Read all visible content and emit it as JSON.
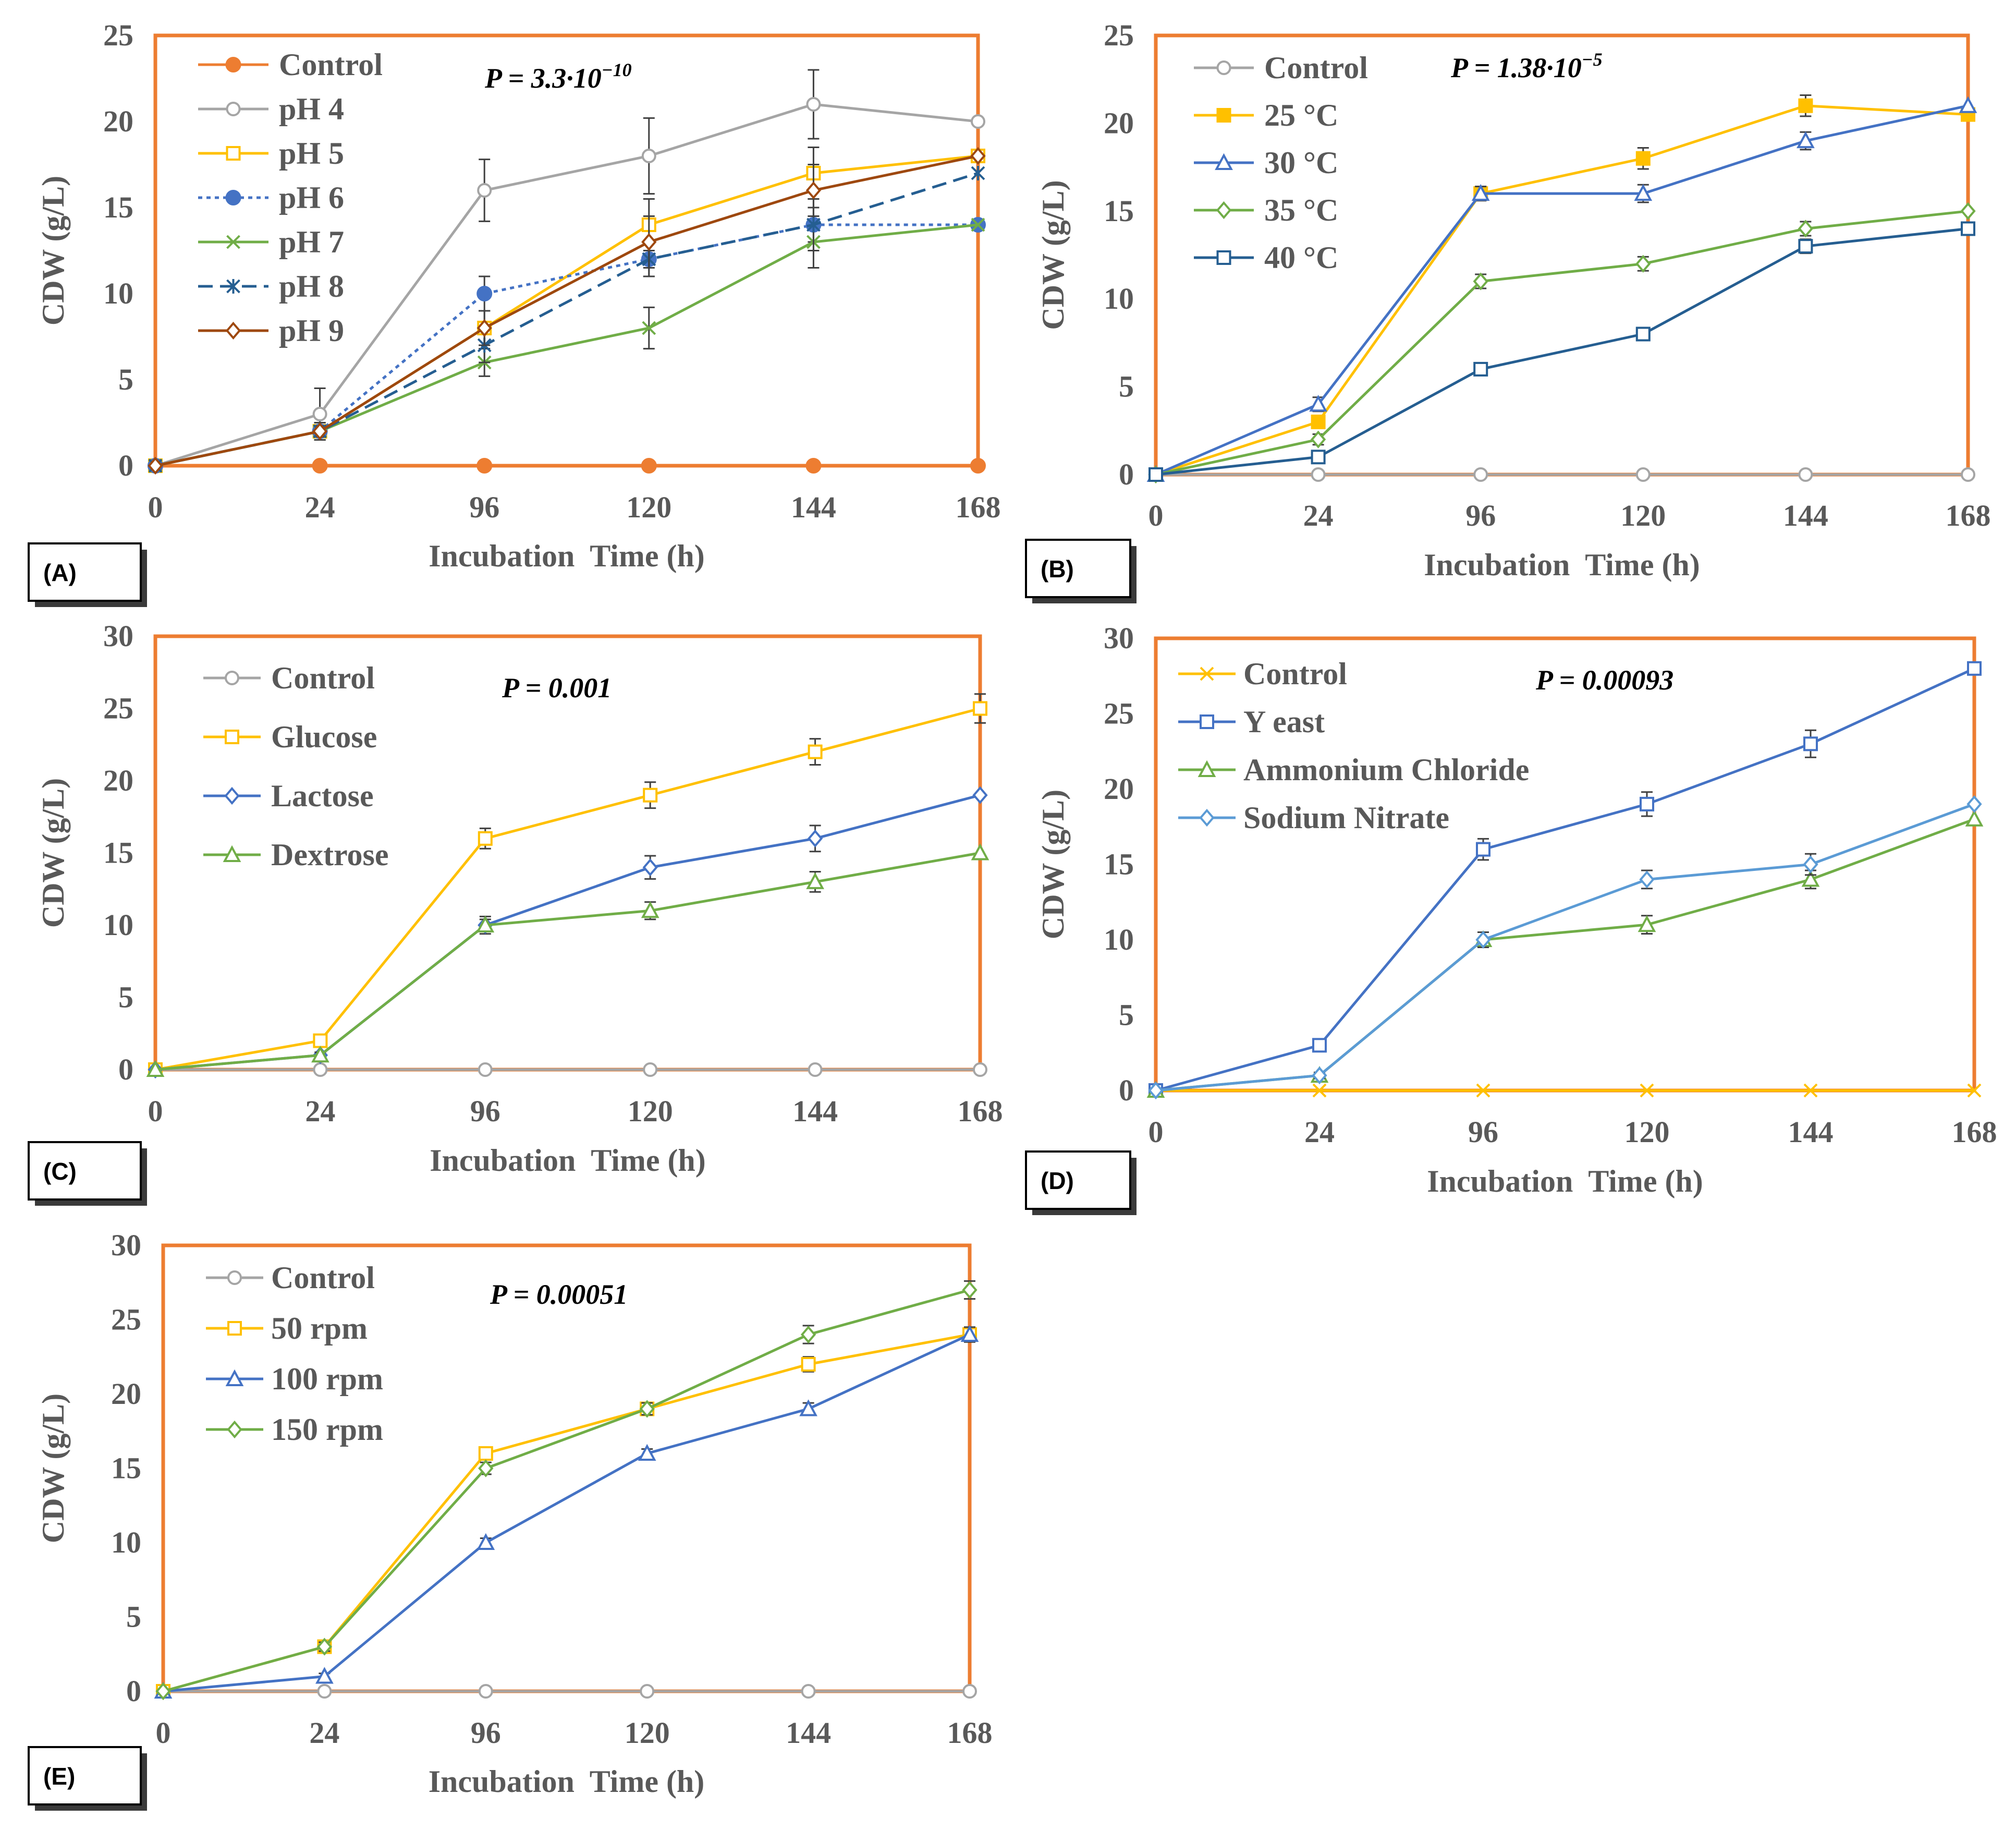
{
  "figure": {
    "colors": {
      "frame": "#ED7D31",
      "text": "#595959",
      "error_bar": "#404040"
    },
    "x_axis_title": "Incubation  Time (h)",
    "y_axis_title": "CDW (g/L)"
  },
  "chart_data": [
    {
      "id": "A",
      "type": "line",
      "panel_label": "(A)",
      "p_value": {
        "prefix": "P = 3.3·10",
        "exponent": "−10"
      },
      "xlabel": "Incubation  Time (h)",
      "ylabel": "CDW (g/L)",
      "categories": [
        "0",
        "24",
        "96",
        "120",
        "144",
        "168"
      ],
      "ylim": [
        0,
        25
      ],
      "yticks": [
        0,
        5,
        10,
        15,
        20,
        25
      ],
      "series": [
        {
          "name": "Control",
          "color": "#ED7D31",
          "marker": "filled-circle",
          "dash": "solid",
          "values": [
            0,
            0,
            0,
            0,
            0,
            0
          ],
          "errors": [
            0,
            0,
            0,
            0,
            0,
            0
          ]
        },
        {
          "name": "pH 4",
          "color": "#A5A5A5",
          "marker": "circle",
          "dash": "solid",
          "values": [
            0,
            3,
            16,
            18,
            21,
            20
          ],
          "errors": [
            0,
            1.5,
            1.8,
            2.2,
            2.0,
            0
          ]
        },
        {
          "name": "pH 5",
          "color": "#FFC000",
          "marker": "square",
          "dash": "solid",
          "values": [
            0,
            2,
            8,
            14,
            17,
            18
          ],
          "errors": [
            0,
            0.5,
            1.0,
            1.5,
            1.5,
            0
          ]
        },
        {
          "name": "pH 6",
          "color": "#4472C4",
          "marker": "filled-circle",
          "dash": "dotted",
          "values": [
            0,
            2,
            10,
            12,
            14,
            14
          ],
          "errors": [
            0,
            0.5,
            1.0,
            1.0,
            1.0,
            0
          ]
        },
        {
          "name": "pH 7",
          "color": "#70AD47",
          "marker": "x",
          "dash": "solid",
          "values": [
            0,
            2,
            6,
            8,
            13,
            14
          ],
          "errors": [
            0,
            0.3,
            0.8,
            1.2,
            1.5,
            0
          ]
        },
        {
          "name": "pH 8",
          "color": "#255E91",
          "marker": "star",
          "dash": "dashed",
          "values": [
            0,
            2,
            7,
            12,
            14,
            17
          ],
          "errors": [
            0,
            0.5,
            1.0,
            1.0,
            1.5,
            0
          ]
        },
        {
          "name": "pH 9",
          "color": "#9E480E",
          "marker": "diamond",
          "dash": "solid",
          "values": [
            0,
            2,
            8,
            13,
            16,
            18
          ],
          "errors": [
            0,
            0.5,
            1.0,
            1.5,
            1.5,
            0
          ]
        }
      ]
    },
    {
      "id": "B",
      "type": "line",
      "panel_label": "(B)",
      "p_value": {
        "prefix": "P = 1.38·10",
        "exponent": "−5"
      },
      "xlabel": "Incubation  Time (h)",
      "ylabel": "CDW (g/L)",
      "categories": [
        "0",
        "24",
        "96",
        "120",
        "144",
        "168"
      ],
      "ylim": [
        0,
        25
      ],
      "yticks": [
        0,
        5,
        10,
        15,
        20,
        25
      ],
      "series": [
        {
          "name": "Control",
          "color": "#A5A5A5",
          "marker": "circle",
          "dash": "solid",
          "values": [
            0,
            0,
            0,
            0,
            0,
            0
          ],
          "errors": [
            0,
            0,
            0,
            0,
            0,
            0
          ]
        },
        {
          "name": "25 °C",
          "color": "#FFC000",
          "marker": "filled-square",
          "dash": "solid",
          "values": [
            0,
            3,
            16,
            18,
            21,
            20.5
          ],
          "errors": [
            0,
            0.3,
            0.4,
            0.6,
            0.6,
            0
          ]
        },
        {
          "name": "30 °C",
          "color": "#4472C4",
          "marker": "triangle",
          "dash": "solid",
          "values": [
            0,
            4,
            16,
            16,
            19,
            21
          ],
          "errors": [
            0,
            0.4,
            0.4,
            0.5,
            0.5,
            0
          ]
        },
        {
          "name": "35 °C",
          "color": "#70AD47",
          "marker": "diamond",
          "dash": "solid",
          "values": [
            0,
            2,
            11,
            12,
            14,
            15
          ],
          "errors": [
            0,
            0.3,
            0.4,
            0.4,
            0.4,
            0
          ]
        },
        {
          "name": "40 °C",
          "color": "#255E91",
          "marker": "square",
          "dash": "solid",
          "values": [
            0,
            1,
            6,
            8,
            13,
            14
          ],
          "errors": [
            0,
            0.2,
            0.3,
            0.3,
            0.4,
            0
          ]
        }
      ]
    },
    {
      "id": "C",
      "type": "line",
      "panel_label": "(C)",
      "p_value": {
        "prefix": "P = 0.001",
        "exponent": ""
      },
      "xlabel": "Incubation  Time (h)",
      "ylabel": "CDW (g/L)",
      "categories": [
        "0",
        "24",
        "96",
        "120",
        "144",
        "168"
      ],
      "ylim": [
        0,
        30
      ],
      "yticks": [
        0,
        5,
        10,
        15,
        20,
        25,
        30
      ],
      "series": [
        {
          "name": "Control",
          "color": "#A5A5A5",
          "marker": "circle",
          "dash": "solid",
          "values": [
            0,
            0,
            0,
            0,
            0,
            0
          ],
          "errors": [
            0,
            0,
            0,
            0,
            0,
            0
          ]
        },
        {
          "name": "Glucose",
          "color": "#FFC000",
          "marker": "square",
          "dash": "solid",
          "values": [
            0,
            2,
            16,
            19,
            22,
            25
          ],
          "errors": [
            0,
            0.3,
            0.7,
            0.9,
            0.9,
            1.0
          ]
        },
        {
          "name": "Lactose",
          "color": "#4472C4",
          "marker": "diamond",
          "dash": "solid",
          "values": [
            0,
            1,
            10,
            14,
            16,
            19
          ],
          "errors": [
            0,
            0.2,
            0.6,
            0.8,
            0.9,
            0
          ]
        },
        {
          "name": "Dextrose",
          "color": "#70AD47",
          "marker": "triangle",
          "dash": "solid",
          "values": [
            0,
            1,
            10,
            11,
            13,
            15
          ],
          "errors": [
            0,
            0.2,
            0.4,
            0.6,
            0.7,
            0
          ]
        }
      ]
    },
    {
      "id": "D",
      "type": "line",
      "panel_label": "(D)",
      "p_value": {
        "prefix": "P = 0.00093",
        "exponent": ""
      },
      "xlabel": "Incubation  Time (h)",
      "ylabel": "CDW (g/L)",
      "categories": [
        "0",
        "24",
        "96",
        "120",
        "144",
        "168"
      ],
      "ylim": [
        0,
        30
      ],
      "yticks": [
        0,
        5,
        10,
        15,
        20,
        25,
        30
      ],
      "series": [
        {
          "name": "Control",
          "color": "#FFC000",
          "marker": "x",
          "dash": "solid",
          "values": [
            0,
            0,
            0,
            0,
            0,
            0
          ],
          "errors": [
            0,
            0,
            0,
            0,
            0,
            0
          ]
        },
        {
          "name": "Y east",
          "color": "#4472C4",
          "marker": "square",
          "dash": "solid",
          "values": [
            0,
            3,
            16,
            19,
            23,
            28
          ],
          "errors": [
            0,
            0.3,
            0.7,
            0.8,
            0.9,
            0
          ]
        },
        {
          "name": "Ammonium Chloride",
          "color": "#70AD47",
          "marker": "triangle",
          "dash": "solid",
          "values": [
            0,
            1,
            10,
            11,
            14,
            18
          ],
          "errors": [
            0,
            0.2,
            0.5,
            0.6,
            0.6,
            0
          ]
        },
        {
          "name": "Sodium Nitrate",
          "color": "#5B9BD5",
          "marker": "diamond",
          "dash": "solid",
          "values": [
            0,
            1,
            10,
            14,
            15,
            19
          ],
          "errors": [
            0,
            0.2,
            0.5,
            0.6,
            0.7,
            0
          ]
        }
      ]
    },
    {
      "id": "E",
      "type": "line",
      "panel_label": "(E)",
      "p_value": {
        "prefix": "P = 0.00051",
        "exponent": ""
      },
      "xlabel": "Incubation  Time (h)",
      "ylabel": "CDW (g/L)",
      "categories": [
        "0",
        "24",
        "96",
        "120",
        "144",
        "168"
      ],
      "ylim": [
        0,
        30
      ],
      "yticks": [
        0,
        5,
        10,
        15,
        20,
        25,
        30
      ],
      "series": [
        {
          "name": "Control",
          "color": "#A5A5A5",
          "marker": "circle",
          "dash": "solid",
          "values": [
            0,
            0,
            0,
            0,
            0,
            0
          ],
          "errors": [
            0,
            0,
            0,
            0,
            0,
            0
          ]
        },
        {
          "name": "50 rpm",
          "color": "#FFC000",
          "marker": "square",
          "dash": "solid",
          "values": [
            0,
            3,
            16,
            19,
            22,
            24
          ],
          "errors": [
            0,
            0.3,
            0.3,
            0.4,
            0.5,
            0
          ]
        },
        {
          "name": "100 rpm",
          "color": "#4472C4",
          "marker": "triangle",
          "dash": "solid",
          "values": [
            0,
            1,
            10,
            16,
            19,
            24
          ],
          "errors": [
            0,
            0.2,
            0.3,
            0.3,
            0.4,
            0.5
          ]
        },
        {
          "name": "150 rpm",
          "color": "#70AD47",
          "marker": "diamond",
          "dash": "solid",
          "values": [
            0,
            3,
            15,
            19,
            24,
            27
          ],
          "errors": [
            0,
            0.3,
            0.4,
            0.4,
            0.6,
            0.6
          ]
        }
      ]
    }
  ]
}
